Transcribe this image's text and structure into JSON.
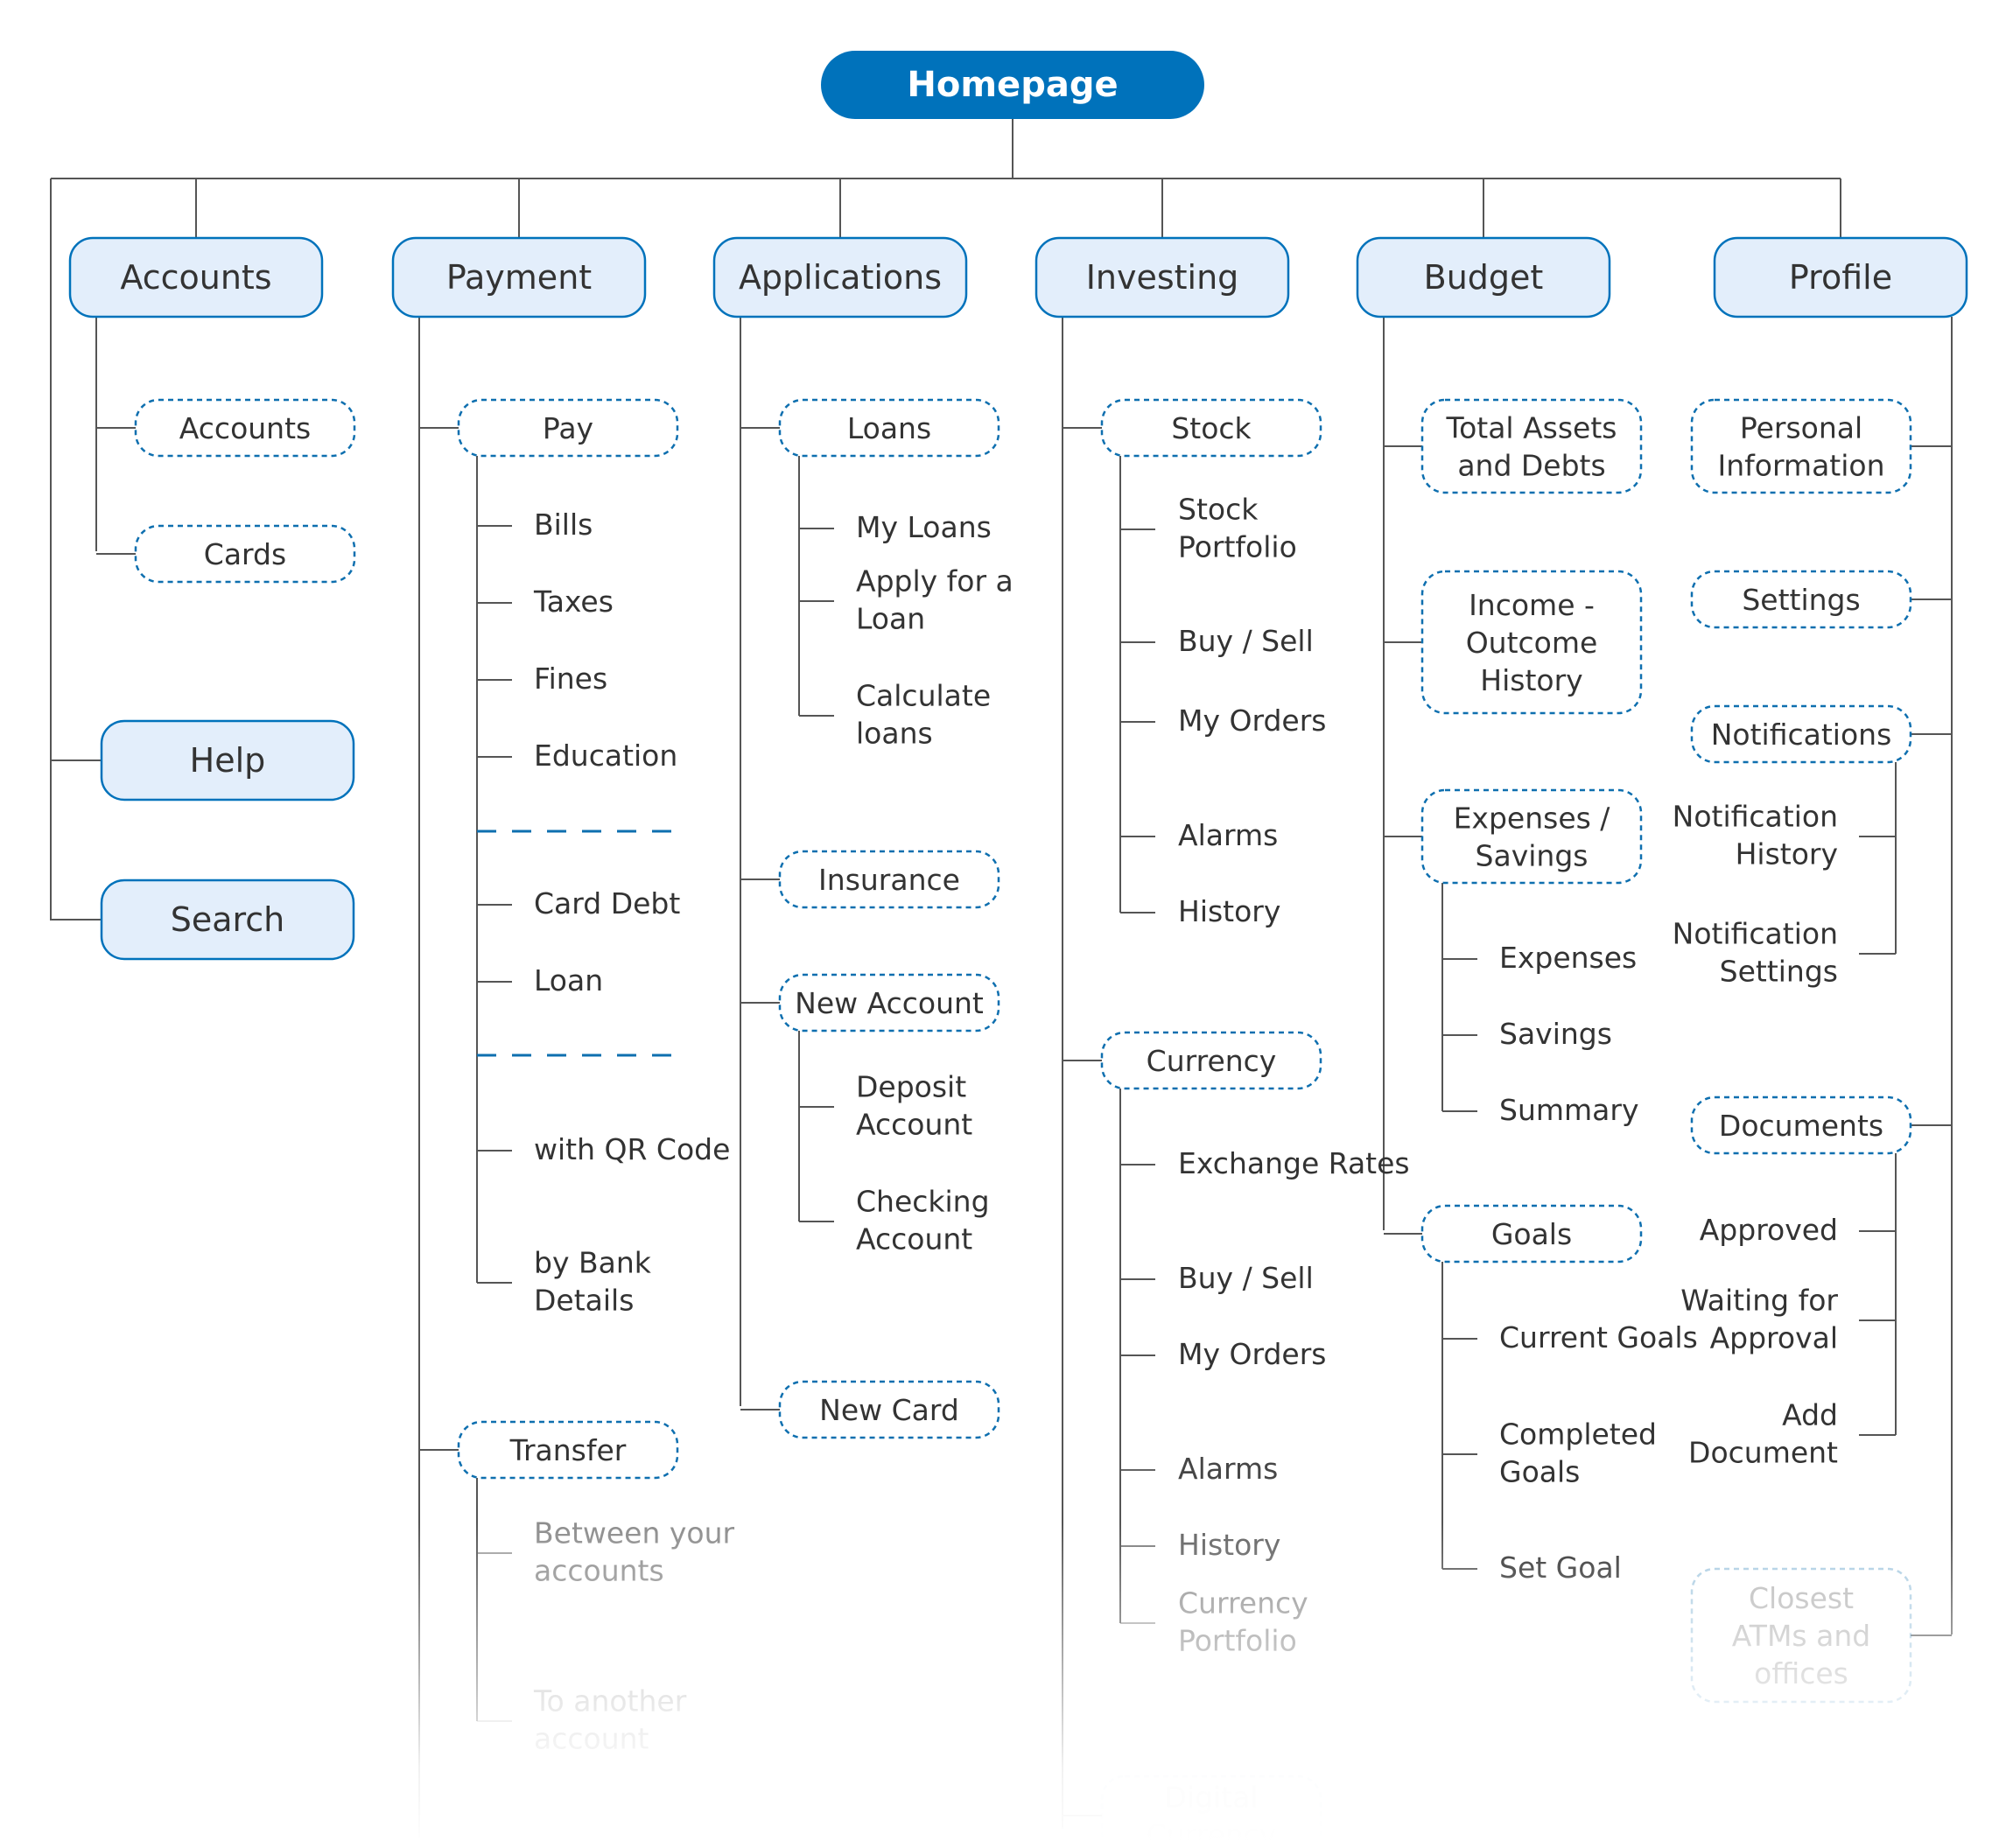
{
  "colors": {
    "accent": "#0072BB",
    "primary_fill": "#E3EEFB",
    "line": "#555555",
    "text": "#333333",
    "dashed_border": "#0E6FAF"
  },
  "root": {
    "label": "Homepage"
  },
  "columns": [
    {
      "label": "Accounts",
      "children": [
        {
          "label": "Accounts",
          "children": []
        },
        {
          "label": "Cards",
          "children": []
        }
      ]
    },
    {
      "label": "Payment",
      "children": [
        {
          "label": "Pay",
          "children": [
            "Bills",
            "Taxes",
            "Fines",
            "Education",
            "Card Debt",
            "Loan",
            "with QR Code",
            "by Bank Details"
          ]
        },
        {
          "label": "Transfer",
          "children": [
            "Between your accounts",
            "To another account"
          ]
        }
      ]
    },
    {
      "label": "Applications",
      "children": [
        {
          "label": "Loans",
          "children": [
            "My Loans",
            "Apply for a Loan",
            "Calculate loans"
          ]
        },
        {
          "label": "Insurance",
          "children": []
        },
        {
          "label": "New Account",
          "children": [
            "Deposit Account",
            "Checking Account"
          ]
        },
        {
          "label": "New Card",
          "children": []
        }
      ]
    },
    {
      "label": "Investing",
      "children": [
        {
          "label": "Stock",
          "children": [
            "Stock Portfolio",
            "Buy / Sell",
            "My Orders",
            "Alarms",
            "History"
          ]
        },
        {
          "label": "Currency",
          "children": [
            "Exchange Rates",
            "Buy / Sell",
            "My Orders",
            "Alarms",
            "History",
            "Currency Portfolio"
          ]
        },
        {
          "label": "Digital Currency",
          "children": []
        }
      ]
    },
    {
      "label": "Budget",
      "children": [
        {
          "label": "Total Assets and Debts",
          "children": []
        },
        {
          "label": "Income - Outcome History",
          "children": []
        },
        {
          "label": "Expenses / Savings",
          "children": [
            "Expenses",
            "Savings",
            "Summary"
          ]
        },
        {
          "label": "Goals",
          "children": [
            "Current Goals",
            "Completed Goals",
            "Set Goal"
          ]
        }
      ]
    },
    {
      "label": "Profile",
      "children": [
        {
          "label": "Personal Information",
          "children": []
        },
        {
          "label": "Settings",
          "children": []
        },
        {
          "label": "Notifications",
          "children": [
            "Notification History",
            "Notification Settings"
          ]
        },
        {
          "label": "Documents",
          "children": [
            "Approved",
            "Waiting for Approval",
            "Add Document"
          ]
        },
        {
          "label": "Closest ATMs and offices",
          "children": []
        }
      ]
    }
  ],
  "extras": [
    {
      "label": "Help"
    },
    {
      "label": "Search"
    }
  ]
}
